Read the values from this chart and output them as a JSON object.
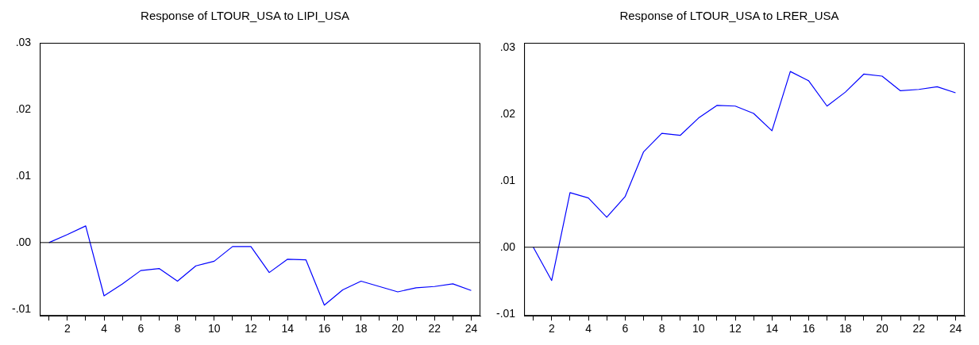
{
  "chart_data": [
    {
      "type": "line",
      "title": "Response of LTOUR_USA to LIPI_USA",
      "x": [
        1,
        2,
        3,
        4,
        5,
        6,
        7,
        8,
        9,
        10,
        11,
        12,
        13,
        14,
        15,
        16,
        17,
        18,
        19,
        20,
        21,
        22,
        23,
        24
      ],
      "series": [
        {
          "color": "#0000ff",
          "values": [
            0,
            0.0012,
            0.0025,
            -0.008,
            -0.0062,
            -0.0042,
            -0.0039,
            -0.0058,
            -0.0035,
            -0.0028,
            -0.0006,
            -0.0006,
            -0.0045,
            -0.0025,
            -0.0026,
            -0.0094,
            -0.0071,
            -0.0058,
            -0.0066,
            -0.0074,
            -0.0068,
            -0.0066,
            -0.0062,
            -0.0072
          ]
        }
      ],
      "xlim": [
        0.5,
        24.5
      ],
      "ylim": [
        -0.011,
        0.03
      ],
      "xticks": [
        {
          "value": 1,
          "label": null
        },
        2,
        {
          "value": 3,
          "label": null
        },
        4,
        {
          "value": 5,
          "label": null
        },
        6,
        {
          "value": 7,
          "label": null
        },
        8,
        {
          "value": 9,
          "label": null
        },
        10,
        {
          "value": 11,
          "label": null
        },
        12,
        {
          "value": 13,
          "label": null
        },
        14,
        {
          "value": 15,
          "label": null
        },
        16,
        {
          "value": 17,
          "label": null
        },
        18,
        {
          "value": 19,
          "label": null
        },
        20,
        {
          "value": 21,
          "label": null
        },
        22,
        {
          "value": 23,
          "label": null
        },
        24
      ],
      "yticks": [
        {
          "value": -0.01,
          "label": "-.01"
        },
        {
          "value": 0,
          "label": ".00"
        },
        {
          "value": 0.01,
          "label": ".01"
        },
        {
          "value": 0.02,
          "label": ".02"
        },
        {
          "value": 0.03,
          "label": ".03"
        }
      ],
      "ref_lines": [
        {
          "axis": "y",
          "value": 0,
          "color": "#000000"
        }
      ],
      "grid": false,
      "legend": false,
      "marker": "none",
      "line_style": "solid"
    },
    {
      "type": "line",
      "title": "Response of LTOUR_USA to LRER_USA",
      "x": [
        1,
        2,
        3,
        4,
        5,
        6,
        7,
        8,
        9,
        10,
        11,
        12,
        13,
        14,
        15,
        16,
        17,
        18,
        19,
        20,
        21,
        22,
        23,
        24
      ],
      "series": [
        {
          "color": "#0000ff",
          "values": [
            0,
            -0.005,
            0.0082,
            0.0074,
            0.0045,
            0.0076,
            0.0143,
            0.0171,
            0.0168,
            0.0194,
            0.0213,
            0.0212,
            0.0201,
            0.0175,
            0.0264,
            0.025,
            0.0212,
            0.0233,
            0.026,
            0.0257,
            0.0235,
            0.0237,
            0.0241,
            0.0232
          ]
        }
      ],
      "xlim": [
        0.5,
        24.5
      ],
      "ylim": [
        -0.0103,
        0.0307
      ],
      "xticks": [
        {
          "value": 1,
          "label": null
        },
        2,
        {
          "value": 3,
          "label": null
        },
        4,
        {
          "value": 5,
          "label": null
        },
        6,
        {
          "value": 7,
          "label": null
        },
        8,
        {
          "value": 9,
          "label": null
        },
        10,
        {
          "value": 11,
          "label": null
        },
        12,
        {
          "value": 13,
          "label": null
        },
        14,
        {
          "value": 15,
          "label": null
        },
        16,
        {
          "value": 17,
          "label": null
        },
        18,
        {
          "value": 19,
          "label": null
        },
        20,
        {
          "value": 21,
          "label": null
        },
        22,
        {
          "value": 23,
          "label": null
        },
        24
      ],
      "yticks": [
        {
          "value": -0.01,
          "label": "-.01"
        },
        {
          "value": 0,
          "label": ".00"
        },
        {
          "value": 0.01,
          "label": ".01"
        },
        {
          "value": 0.02,
          "label": ".02"
        },
        {
          "value": 0.03,
          "label": ".03"
        }
      ],
      "ref_lines": [
        {
          "axis": "y",
          "value": 0,
          "color": "#000000"
        }
      ],
      "grid": false,
      "legend": false,
      "marker": "none",
      "line_style": "solid"
    }
  ]
}
